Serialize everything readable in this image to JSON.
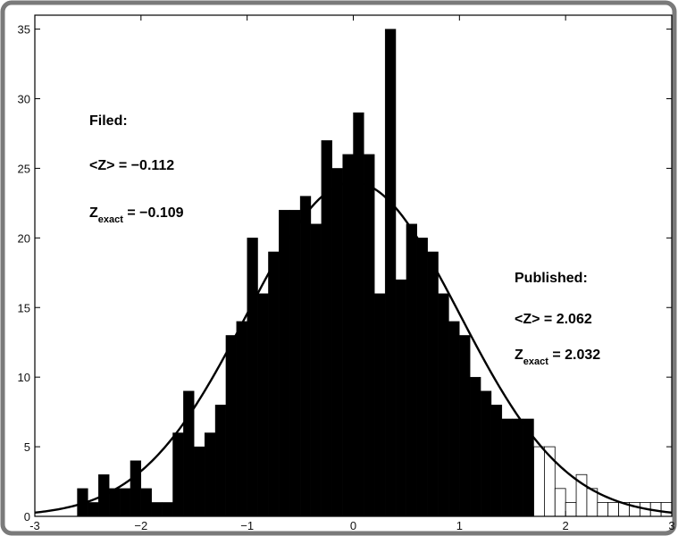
{
  "chart_data": {
    "type": "bar",
    "title": "",
    "xlabel": "",
    "ylabel": "",
    "xlim": [
      -3,
      3
    ],
    "ylim": [
      0,
      36
    ],
    "grid": false,
    "legend": "none",
    "bin_width": 0.1,
    "x_ticks": [
      -3,
      -2,
      -1,
      0,
      1,
      2,
      3
    ],
    "x_tick_labels": [
      "-3",
      "−2",
      "−1",
      "0",
      "1",
      "2",
      "3"
    ],
    "y_ticks": [
      0,
      5,
      10,
      15,
      20,
      25,
      30,
      35
    ],
    "y_tick_labels": [
      "0",
      "5",
      "10",
      "15",
      "20",
      "25",
      "30",
      "35"
    ],
    "series": [
      {
        "style": "filled",
        "bins": [
          [
            -2.6,
            2
          ],
          [
            -2.5,
            1
          ],
          [
            -2.4,
            3
          ],
          [
            -2.3,
            2
          ],
          [
            -2.2,
            2
          ],
          [
            -2.1,
            4
          ],
          [
            -2.0,
            2
          ],
          [
            -1.9,
            1
          ],
          [
            -1.8,
            1
          ],
          [
            -1.7,
            6
          ],
          [
            -1.6,
            9
          ],
          [
            -1.5,
            5
          ],
          [
            -1.4,
            6
          ],
          [
            -1.3,
            8
          ],
          [
            -1.2,
            13
          ],
          [
            -1.1,
            14
          ],
          [
            -1.0,
            20
          ],
          [
            -0.9,
            16
          ],
          [
            -0.8,
            19
          ],
          [
            -0.7,
            22
          ],
          [
            -0.6,
            22
          ],
          [
            -0.5,
            23
          ],
          [
            -0.4,
            21
          ],
          [
            -0.3,
            27
          ],
          [
            -0.2,
            25
          ],
          [
            -0.1,
            26
          ],
          [
            0.0,
            29
          ],
          [
            0.1,
            26
          ],
          [
            0.2,
            16
          ],
          [
            0.3,
            35
          ],
          [
            0.4,
            17
          ],
          [
            0.5,
            21
          ],
          [
            0.6,
            20
          ],
          [
            0.7,
            19
          ],
          [
            0.8,
            16
          ],
          [
            0.9,
            14
          ],
          [
            1.0,
            13
          ],
          [
            1.1,
            10
          ],
          [
            1.2,
            9
          ],
          [
            1.3,
            8
          ],
          [
            1.4,
            7
          ],
          [
            1.5,
            7
          ],
          [
            1.6,
            7
          ]
        ]
      },
      {
        "style": "hollow",
        "bins": [
          [
            1.7,
            5
          ],
          [
            1.8,
            5
          ],
          [
            1.9,
            2
          ],
          [
            2.0,
            1
          ],
          [
            2.1,
            3
          ],
          [
            2.2,
            2
          ],
          [
            2.3,
            1
          ],
          [
            2.4,
            1
          ],
          [
            2.5,
            1
          ],
          [
            2.6,
            1
          ],
          [
            2.7,
            1
          ],
          [
            2.8,
            1
          ],
          [
            2.9,
            1
          ]
        ]
      }
    ],
    "curve": {
      "type": "normal",
      "peak": 24,
      "mean": 0,
      "sd": 1
    },
    "annotations": [
      {
        "title": "Filed:",
        "mean_label": "<Z> = −0.112",
        "exact_prefix": "Z",
        "exact_subscript": "exact",
        "exact_value": " = −0.109"
      },
      {
        "title": "Published:",
        "mean_label": "<Z> = 2.062",
        "exact_prefix": "Z",
        "exact_subscript": "exact",
        "exact_value": " = 2.032"
      }
    ],
    "colors": {
      "bar_fill": "#000000",
      "hollow_fill": "#ffffff",
      "stroke": "#000000"
    }
  }
}
